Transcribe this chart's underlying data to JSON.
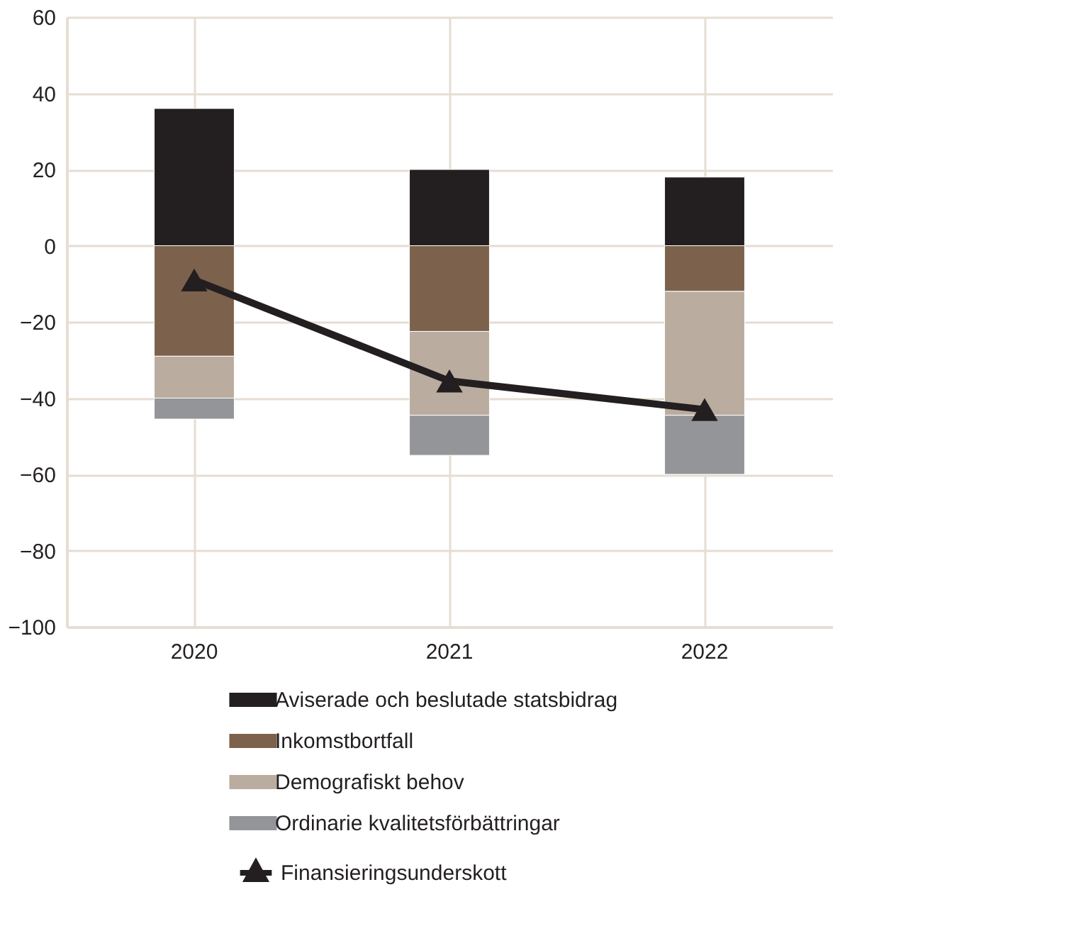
{
  "chart_data": {
    "type": "bar",
    "stacked": true,
    "categories": [
      "2020",
      "2021",
      "2022"
    ],
    "series": [
      {
        "name": "Aviserade och beslutade statsbidrag",
        "color": "#231f20",
        "values": [
          36,
          20,
          18
        ]
      },
      {
        "name": "Inkomstbortfall",
        "color": "#7c624c",
        "values": [
          -29,
          -22.5,
          -12
        ]
      },
      {
        "name": "Demografiskt behov",
        "color": "#bbaca0",
        "values": [
          -11,
          -22,
          -32.5
        ]
      },
      {
        "name": "Ordinarie kvalitetsförbättringar",
        "color": "#939598",
        "values": [
          -5.5,
          -10.5,
          -15.5
        ]
      },
      {
        "name": "Finansieringsunderskott",
        "type": "line",
        "color": "#231f20",
        "marker": "triangle",
        "values": [
          -9,
          -35.5,
          -43
        ]
      }
    ],
    "ylim": [
      -100,
      60
    ],
    "yticks": [
      -100,
      -80,
      -60,
      -40,
      -20,
      0,
      20,
      40,
      60
    ],
    "grid": true,
    "legend": "bottom"
  }
}
